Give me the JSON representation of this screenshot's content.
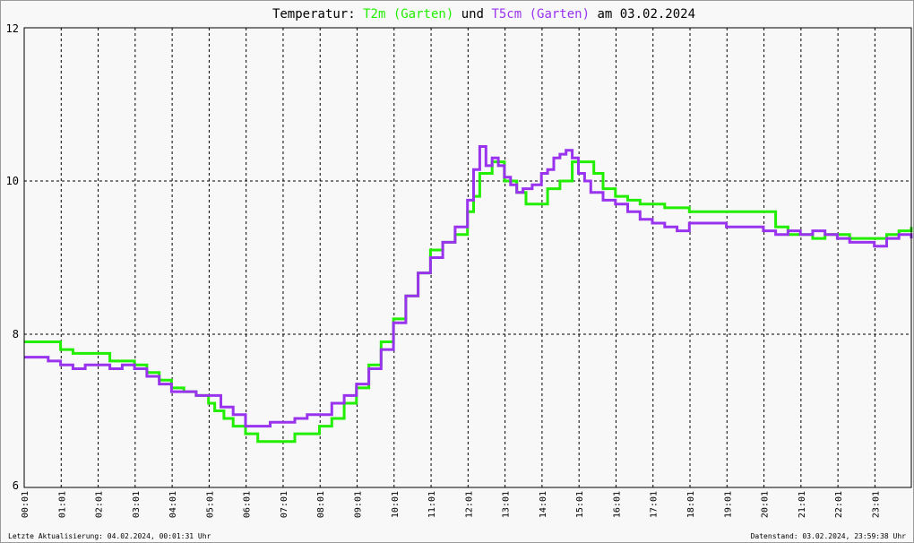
{
  "title": {
    "prefix": "Temperatur:",
    "series1": "T2m (Garten)",
    "connector": "und",
    "series2": "T5cm (Garten)",
    "suffix": "am 03.02.2024"
  },
  "footer": {
    "left": "Letzte Aktualisierung: 04.02.2024, 00:01:31 Uhr",
    "right": "Datenstand: 03.02.2024, 23:59:38 Uhr"
  },
  "colors": {
    "t2m": "#22ee00",
    "t5cm": "#9933ee",
    "grid": "#000000",
    "background": "#f8f8f8"
  },
  "chart_data": {
    "type": "line",
    "title": "Temperatur: T2m (Garten) und T5cm (Garten) am 03.02.2024",
    "xlabel": "",
    "ylabel": "",
    "xlim": [
      "00:01",
      "24:00"
    ],
    "ylim": [
      6,
      12
    ],
    "grid": true,
    "legend": "title",
    "y_ticks": [
      "6",
      "8",
      "10",
      "12"
    ],
    "x_ticks": [
      "00:01",
      "01:01",
      "02:01",
      "03:01",
      "04:01",
      "05:01",
      "06:01",
      "07:01",
      "08:01",
      "09:01",
      "10:01",
      "11:01",
      "12:01",
      "13:01",
      "14:01",
      "15:01",
      "16:01",
      "17:01",
      "18:01",
      "19:01",
      "20:01",
      "21:01",
      "22:01",
      "23:01"
    ],
    "series": [
      {
        "name": "T2m (Garten)",
        "color": "#22ee00",
        "x": [
          "00:01",
          "00:20",
          "00:35",
          "01:00",
          "01:20",
          "02:00",
          "02:20",
          "02:40",
          "03:00",
          "03:20",
          "03:40",
          "04:00",
          "04:20",
          "04:40",
          "05:00",
          "05:10",
          "05:25",
          "05:40",
          "06:00",
          "06:20",
          "07:00",
          "07:20",
          "07:40",
          "08:00",
          "08:20",
          "08:40",
          "09:00",
          "09:20",
          "09:40",
          "10:00",
          "10:20",
          "10:40",
          "11:00",
          "11:20",
          "11:40",
          "12:00",
          "12:10",
          "12:20",
          "12:40",
          "13:00",
          "13:20",
          "13:35",
          "13:50",
          "14:10",
          "14:30",
          "14:50",
          "15:10",
          "15:25",
          "15:40",
          "16:00",
          "16:20",
          "16:40",
          "17:00",
          "17:20",
          "17:40",
          "18:00",
          "18:40",
          "19:00",
          "19:40",
          "20:01",
          "20:20",
          "20:40",
          "21:00",
          "21:20",
          "21:40",
          "22:00",
          "22:20",
          "22:40",
          "23:00",
          "23:20",
          "23:40",
          "24:00"
        ],
        "values": [
          7.9,
          7.9,
          7.9,
          7.8,
          7.75,
          7.75,
          7.65,
          7.65,
          7.6,
          7.5,
          7.4,
          7.3,
          7.25,
          7.2,
          7.1,
          7.0,
          6.9,
          6.8,
          6.7,
          6.6,
          6.6,
          6.7,
          6.7,
          6.8,
          6.9,
          7.1,
          7.3,
          7.6,
          7.9,
          8.2,
          8.5,
          8.8,
          9.1,
          9.2,
          9.3,
          9.6,
          9.8,
          10.1,
          10.25,
          10.0,
          9.85,
          9.7,
          9.7,
          9.9,
          10.0,
          10.25,
          10.25,
          10.1,
          9.9,
          9.8,
          9.75,
          9.7,
          9.7,
          9.65,
          9.65,
          9.6,
          9.6,
          9.6,
          9.6,
          9.6,
          9.4,
          9.3,
          9.3,
          9.25,
          9.3,
          9.3,
          9.25,
          9.25,
          9.25,
          9.3,
          9.35,
          9.4
        ]
      },
      {
        "name": "T5cm (Garten)",
        "color": "#9933ee",
        "x": [
          "00:01",
          "00:20",
          "00:40",
          "01:00",
          "01:20",
          "01:40",
          "02:00",
          "02:20",
          "02:40",
          "03:00",
          "03:20",
          "03:40",
          "04:00",
          "04:20",
          "04:40",
          "05:00",
          "05:20",
          "05:40",
          "06:00",
          "06:20",
          "06:40",
          "07:00",
          "07:20",
          "07:40",
          "08:00",
          "08:20",
          "08:40",
          "09:00",
          "09:20",
          "09:40",
          "10:00",
          "10:20",
          "10:40",
          "11:00",
          "11:20",
          "11:40",
          "12:00",
          "12:10",
          "12:20",
          "12:30",
          "12:40",
          "12:50",
          "13:00",
          "13:10",
          "13:20",
          "13:30",
          "13:45",
          "14:00",
          "14:10",
          "14:20",
          "14:30",
          "14:40",
          "14:50",
          "15:00",
          "15:10",
          "15:20",
          "15:40",
          "16:00",
          "16:20",
          "16:40",
          "17:00",
          "17:20",
          "17:40",
          "18:00",
          "18:20",
          "18:40",
          "19:00",
          "19:20",
          "19:40",
          "20:00",
          "20:20",
          "20:40",
          "21:00",
          "21:20",
          "21:40",
          "22:00",
          "22:20",
          "22:40",
          "23:00",
          "23:20",
          "23:40",
          "24:00"
        ],
        "values": [
          7.7,
          7.7,
          7.65,
          7.6,
          7.55,
          7.6,
          7.6,
          7.55,
          7.6,
          7.55,
          7.45,
          7.35,
          7.25,
          7.25,
          7.2,
          7.2,
          7.05,
          6.95,
          6.8,
          6.8,
          6.85,
          6.85,
          6.9,
          6.95,
          6.95,
          7.1,
          7.2,
          7.35,
          7.55,
          7.8,
          8.15,
          8.5,
          8.8,
          9.0,
          9.2,
          9.4,
          9.75,
          10.15,
          10.45,
          10.2,
          10.3,
          10.2,
          10.05,
          9.95,
          9.85,
          9.9,
          9.95,
          10.1,
          10.15,
          10.3,
          10.35,
          10.4,
          10.3,
          10.1,
          10.0,
          9.85,
          9.75,
          9.7,
          9.6,
          9.5,
          9.45,
          9.4,
          9.35,
          9.45,
          9.45,
          9.45,
          9.4,
          9.4,
          9.4,
          9.35,
          9.3,
          9.35,
          9.3,
          9.35,
          9.3,
          9.25,
          9.2,
          9.2,
          9.15,
          9.25,
          9.3,
          9.25
        ]
      }
    ]
  }
}
